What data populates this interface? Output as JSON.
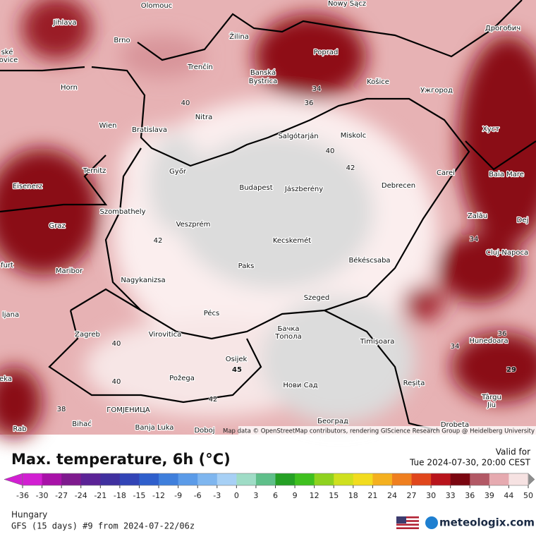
{
  "header": {
    "title": "Max. temperature, 6h (°C)",
    "valid_label": "Valid for",
    "valid_time": "Tue 2024-07-30, 20:00 CEST"
  },
  "map": {
    "attribution": "Map data © OpenStreetMap contributors, rendering GIScience Research Group @ Heidelberg University",
    "cities": [
      "Olomouc",
      "Nowy Sącz",
      "Дрогобич",
      "Jihlava",
      "Brno",
      "Žilina",
      "Poprad",
      "Banská",
      "Bystrica",
      "Košice",
      "Ужгород",
      "Trenčín",
      "Horn",
      "Nitra",
      "Wien",
      "Bratislava",
      "Salgótarján",
      "Miskolc",
      "Хуст",
      "Ternitz",
      "Győr",
      "Budapest",
      "Jászberény",
      "Debrecen",
      "Carei",
      "Baia Mare",
      "Eisenerz",
      "Szombathely",
      "Veszprém",
      "Zalău",
      "Graz",
      "Dej",
      "Kecskemét",
      "Cluj-Napoca",
      "Békéscsaba",
      "Paks",
      "Maribor",
      "Nagykanizsa",
      "Szeged",
      "Pécs",
      "ljana",
      "Бачка",
      "Топола",
      "Zagreb",
      "Virovitica",
      "Timișoara",
      "Hunedoara",
      "Osijek",
      "Požega",
      "Нови Сад",
      "Reșița",
      "Târgu",
      "Jiu",
      "ГОМЈЕНИЦА",
      "Bihać",
      "Banja Luka",
      "Doboj",
      "Београд",
      "Drobeta",
      "Rab",
      "furt",
      "ské",
      "ovice",
      "eka"
    ],
    "contour_labels": [
      40,
      36,
      34,
      40,
      42,
      42,
      34,
      36,
      34,
      40,
      40,
      42,
      38,
      45,
      29
    ]
  },
  "colorbar": {
    "ticks": [
      -36,
      -30,
      -27,
      -24,
      -21,
      -18,
      -15,
      -12,
      -9,
      -6,
      -3,
      0,
      3,
      6,
      9,
      12,
      15,
      18,
      21,
      24,
      27,
      30,
      33,
      36,
      39,
      44,
      50
    ],
    "colors": [
      "#d21fd2",
      "#a812a8",
      "#7e1a8e",
      "#5b2396",
      "#40309f",
      "#3244b6",
      "#2f5fcc",
      "#3f7fdc",
      "#5b9be8",
      "#7fb6ef",
      "#a7d0f5",
      "#9fdcc6",
      "#5fbf8a",
      "#25a025",
      "#3fc01f",
      "#8fd21f",
      "#cfe01f",
      "#f2dc1f",
      "#f4b01f",
      "#ef7f1f",
      "#e0461c",
      "#b8141c",
      "#7a0610",
      "#b25865",
      "#e6aab0",
      "#f6e2e2"
    ],
    "over_color": "#8e8e8e"
  },
  "footer": {
    "region": "Hungary",
    "model": "GFS (15 days) #9 from  2024-07-22/06z",
    "brand": "meteologix.com"
  }
}
